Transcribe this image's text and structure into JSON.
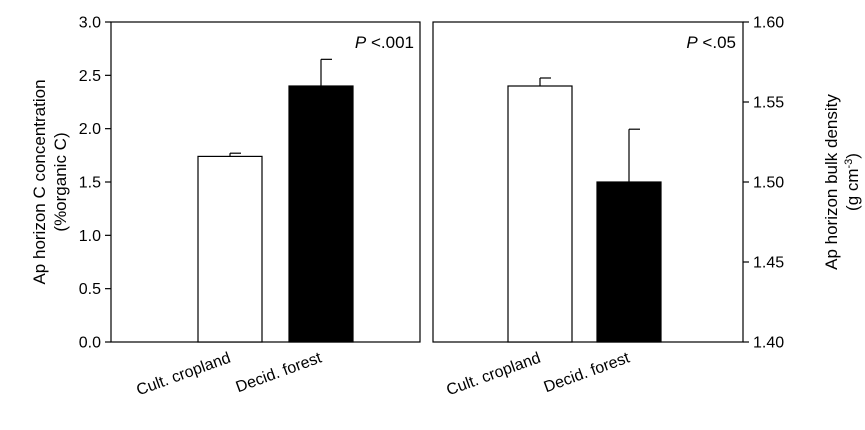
{
  "chart_data": [
    {
      "type": "bar",
      "categories": [
        "Cult. cropland",
        "Decid. forest"
      ],
      "values": [
        1.74,
        2.4
      ],
      "errors": [
        0.03,
        0.25
      ],
      "bar_colors": [
        "#ffffff",
        "#000000"
      ],
      "ylabel_line1": "Ap horizon C concentration",
      "ylabel_line2": "(%organic C)",
      "ylim": [
        0.0,
        3.0
      ],
      "yticks": [
        "0.0",
        "0.5",
        "1.0",
        "1.5",
        "2.0",
        "2.5",
        "3.0"
      ],
      "annotation_italic": "P",
      "annotation_rest": " <.001"
    },
    {
      "type": "bar",
      "categories": [
        "Cult. cropland",
        "Decid. forest"
      ],
      "values": [
        1.56,
        1.5
      ],
      "errors": [
        0.005,
        0.033
      ],
      "bar_colors": [
        "#ffffff",
        "#000000"
      ],
      "ylabel_line1": "Ap horizon bulk density",
      "ylabel_line2": "(g cm",
      "ylabel_sup": "-3",
      "ylabel_close": ")",
      "ylim": [
        1.4,
        1.6
      ],
      "yticks": [
        "1.40",
        "1.45",
        "1.50",
        "1.55",
        "1.60"
      ],
      "annotation_italic": "P",
      "annotation_rest": " <.05"
    }
  ]
}
